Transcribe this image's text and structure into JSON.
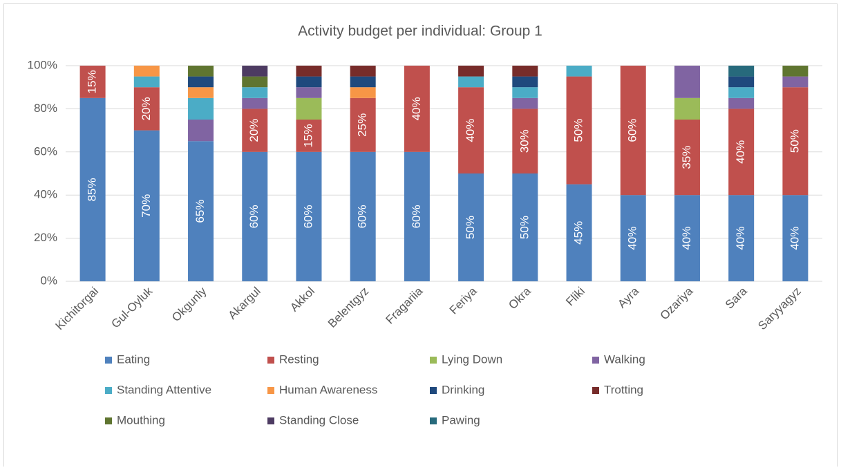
{
  "chart_data": {
    "type": "stacked_bar",
    "title": "Activity budget per individual: Group 1",
    "categories": [
      "Kichitorgai",
      "Gul-Oyluk",
      "Okgunly",
      "Akargul",
      "Akkol",
      "Belentgyz",
      "Fragariia",
      "Feriya",
      "Okra",
      "Fliki",
      "Ayra",
      "Ozariya",
      "Sara",
      "Saryyagyz"
    ],
    "series": [
      {
        "name": "Eating",
        "color": "#4f81bd",
        "values": [
          85,
          70,
          65,
          60,
          60,
          60,
          60,
          50,
          50,
          45,
          40,
          40,
          40,
          40
        ],
        "value_labels": [
          "85%",
          "70%",
          "65%",
          "60%",
          "60%",
          "60%",
          "60%",
          "50%",
          "50%",
          "45%",
          "40%",
          "40%",
          "40%",
          "40%"
        ]
      },
      {
        "name": "Resting",
        "color": "#c0504d",
        "values": [
          15,
          20,
          null,
          20,
          15,
          25,
          40,
          40,
          30,
          50,
          60,
          35,
          40,
          50
        ],
        "value_labels": [
          "15%",
          "20%",
          null,
          "20%",
          "15%",
          "25%",
          "40%",
          "40%",
          "30%",
          "50%",
          "60%",
          "35%",
          "40%",
          "50%"
        ]
      },
      {
        "name": "Lying Down",
        "color": "#9bbb59",
        "values": [
          null,
          null,
          null,
          null,
          10,
          null,
          null,
          null,
          null,
          null,
          null,
          10,
          null,
          null
        ]
      },
      {
        "name": "Walking",
        "color": "#8064a2",
        "values": [
          null,
          null,
          10,
          5,
          5,
          null,
          null,
          null,
          5,
          null,
          null,
          15,
          5,
          5
        ]
      },
      {
        "name": "Standing Attentive",
        "color": "#4bacc6",
        "values": [
          null,
          5,
          10,
          5,
          null,
          null,
          null,
          5,
          5,
          5,
          null,
          null,
          5,
          null
        ]
      },
      {
        "name": "Human Awareness",
        "color": "#f79646",
        "values": [
          null,
          5,
          5,
          null,
          null,
          5,
          null,
          null,
          null,
          null,
          null,
          null,
          null,
          null
        ]
      },
      {
        "name": "Drinking",
        "color": "#1f497d",
        "values": [
          null,
          null,
          5,
          null,
          5,
          5,
          null,
          null,
          5,
          null,
          null,
          null,
          5,
          null
        ]
      },
      {
        "name": "Trotting",
        "color": "#772c2a",
        "values": [
          null,
          null,
          null,
          null,
          5,
          5,
          null,
          5,
          5,
          null,
          null,
          null,
          null,
          null
        ]
      },
      {
        "name": "Mouthing",
        "color": "#5f7530",
        "values": [
          null,
          null,
          5,
          5,
          null,
          null,
          null,
          null,
          null,
          null,
          null,
          null,
          null,
          5
        ]
      },
      {
        "name": "Standing Close",
        "color": "#4d3b62",
        "values": [
          null,
          null,
          null,
          5,
          null,
          null,
          null,
          null,
          null,
          null,
          null,
          null,
          null,
          null
        ]
      },
      {
        "name": "Pawing",
        "color": "#276a7c",
        "values": [
          null,
          null,
          null,
          null,
          null,
          null,
          null,
          null,
          null,
          null,
          null,
          null,
          5,
          null
        ]
      }
    ],
    "ylim": [
      0,
      100
    ],
    "yticks": [
      {
        "value": 0,
        "label": "0%"
      },
      {
        "value": 20,
        "label": "20%"
      },
      {
        "value": 40,
        "label": "40%"
      },
      {
        "value": 60,
        "label": "60%"
      },
      {
        "value": 80,
        "label": "80%"
      },
      {
        "value": 100,
        "label": "100%"
      }
    ],
    "grid": true,
    "legend": "bottom"
  }
}
